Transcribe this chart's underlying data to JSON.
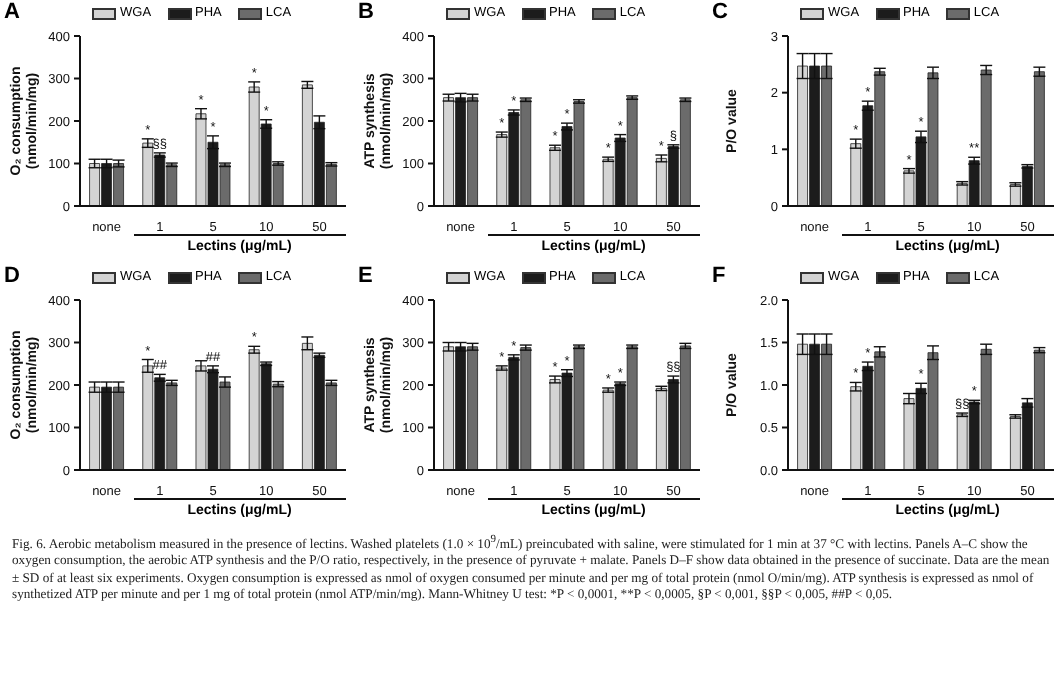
{
  "chart_data": [
    {
      "type": "bar",
      "title": "A",
      "ylabel": "O₂ consumption\n(nmol/min/mg)",
      "xlabel": "Lectins (μg/mL)",
      "categories": [
        "none",
        "1",
        "5",
        "10",
        "50"
      ],
      "ylim": [
        0,
        400
      ],
      "yticks": [
        0,
        100,
        200,
        300,
        400
      ],
      "legend": "top",
      "series": [
        {
          "name": "WGA",
          "color": "#d4d4d4",
          "values": [
            100,
            148,
            217,
            280,
            285
          ],
          "errors": [
            10,
            10,
            12,
            12,
            8
          ],
          "value_labels": [
            null,
            "*",
            "*",
            "*",
            null
          ]
        },
        {
          "name": "PHA",
          "color": "#1c1c1c",
          "values": [
            100,
            120,
            150,
            193,
            197
          ],
          "errors": [
            10,
            5,
            15,
            10,
            15
          ],
          "value_labels": [
            null,
            "§§",
            "*",
            "*",
            null
          ]
        },
        {
          "name": "LCA",
          "color": "#6b6b6b",
          "values": [
            100,
            97,
            97,
            100,
            98
          ],
          "errors": [
            8,
            4,
            4,
            4,
            4
          ],
          "value_labels": [
            null,
            null,
            null,
            null,
            null
          ]
        }
      ]
    },
    {
      "type": "bar",
      "title": "B",
      "ylabel": "ATP synthesis\n(nmol/min/mg)",
      "xlabel": "Lectins (μg/mL)",
      "categories": [
        "none",
        "1",
        "5",
        "10",
        "50"
      ],
      "ylim": [
        0,
        400
      ],
      "yticks": [
        0,
        100,
        200,
        300,
        400
      ],
      "legend": "top",
      "series": [
        {
          "name": "WGA",
          "color": "#d4d4d4",
          "values": [
            255,
            168,
            137,
            110,
            112
          ],
          "errors": [
            8,
            6,
            6,
            5,
            8
          ],
          "value_labels": [
            null,
            "*",
            "*",
            "*",
            "*"
          ]
        },
        {
          "name": "PHA",
          "color": "#1c1c1c",
          "values": [
            255,
            220,
            187,
            160,
            140
          ],
          "errors": [
            10,
            6,
            8,
            8,
            4
          ],
          "value_labels": [
            null,
            "*",
            "*",
            "*",
            "§"
          ]
        },
        {
          "name": "LCA",
          "color": "#6b6b6b",
          "values": [
            255,
            250,
            246,
            255,
            250
          ],
          "errors": [
            8,
            4,
            4,
            4,
            4
          ],
          "value_labels": [
            null,
            null,
            null,
            null,
            null
          ]
        }
      ]
    },
    {
      "type": "bar",
      "title": "C",
      "ylabel": "P/O value",
      "xlabel": "Lectins (μg/mL)",
      "categories": [
        "none",
        "1",
        "5",
        "10",
        "50"
      ],
      "ylim": [
        0,
        3
      ],
      "yticks": [
        0,
        1,
        2,
        3
      ],
      "legend": "top",
      "series": [
        {
          "name": "WGA",
          "color": "#d4d4d4",
          "values": [
            2.47,
            1.1,
            0.62,
            0.4,
            0.38
          ],
          "errors": [
            0.22,
            0.08,
            0.04,
            0.03,
            0.03
          ],
          "value_labels": [
            null,
            "*",
            "*",
            null,
            null
          ]
        },
        {
          "name": "PHA",
          "color": "#1c1c1c",
          "values": [
            2.47,
            1.77,
            1.22,
            0.8,
            0.7
          ],
          "errors": [
            0.22,
            0.08,
            0.1,
            0.06,
            0.03
          ],
          "value_labels": [
            null,
            "*",
            "*",
            "**",
            null
          ]
        },
        {
          "name": "LCA",
          "color": "#6b6b6b",
          "values": [
            2.47,
            2.37,
            2.35,
            2.4,
            2.37
          ],
          "errors": [
            0.22,
            0.06,
            0.1,
            0.08,
            0.08
          ],
          "value_labels": [
            null,
            null,
            null,
            null,
            null
          ]
        }
      ]
    },
    {
      "type": "bar",
      "title": "D",
      "ylabel": "O₂ consumption\n(nmol/min/mg)",
      "xlabel": "Lectins (μg/mL)",
      "categories": [
        "none",
        "1",
        "5",
        "10",
        "50"
      ],
      "ylim": [
        0,
        400
      ],
      "yticks": [
        0,
        100,
        200,
        300,
        400
      ],
      "legend": "top",
      "series": [
        {
          "name": "WGA",
          "color": "#d4d4d4",
          "values": [
            195,
            245,
            245,
            283,
            298
          ],
          "errors": [
            12,
            15,
            12,
            8,
            15
          ],
          "value_labels": [
            null,
            "*",
            null,
            "*",
            null
          ]
        },
        {
          "name": "PHA",
          "color": "#1c1c1c",
          "values": [
            195,
            217,
            237,
            250,
            270
          ],
          "errors": [
            12,
            8,
            8,
            4,
            5
          ],
          "value_labels": [
            null,
            "##",
            "##",
            null,
            null
          ]
        },
        {
          "name": "LCA",
          "color": "#6b6b6b",
          "values": [
            195,
            205,
            207,
            202,
            205
          ],
          "errors": [
            12,
            6,
            12,
            6,
            6
          ],
          "value_labels": [
            null,
            null,
            null,
            null,
            null
          ]
        }
      ]
    },
    {
      "type": "bar",
      "title": "E",
      "ylabel": "ATP synthesis\n(nmol/min/mg)",
      "xlabel": "Lectins (μg/mL)",
      "categories": [
        "none",
        "1",
        "5",
        "10",
        "50"
      ],
      "ylim": [
        0,
        400
      ],
      "yticks": [
        0,
        100,
        200,
        300,
        400
      ],
      "legend": "top",
      "series": [
        {
          "name": "WGA",
          "color": "#d4d4d4",
          "values": [
            290,
            240,
            213,
            188,
            192
          ],
          "errors": [
            10,
            5,
            8,
            5,
            5
          ],
          "value_labels": [
            null,
            "*",
            "*",
            "*",
            null
          ]
        },
        {
          "name": "PHA",
          "color": "#1c1c1c",
          "values": [
            290,
            265,
            228,
            203,
            213
          ],
          "errors": [
            10,
            6,
            8,
            4,
            8
          ],
          "value_labels": [
            null,
            "*",
            "*",
            "*",
            "§§"
          ]
        },
        {
          "name": "LCA",
          "color": "#6b6b6b",
          "values": [
            290,
            288,
            290,
            290,
            292
          ],
          "errors": [
            8,
            6,
            4,
            4,
            6
          ],
          "value_labels": [
            null,
            null,
            null,
            null,
            null
          ]
        }
      ]
    },
    {
      "type": "bar",
      "title": "F",
      "ylabel": "P/O value",
      "xlabel": "Lectins (μg/mL)",
      "categories": [
        "none",
        "1",
        "5",
        "10",
        "50"
      ],
      "ylim": [
        0,
        2
      ],
      "yticks": [
        {
          "value": 0,
          "label": "0.0"
        },
        {
          "value": 0.5,
          "label": "0.5"
        },
        {
          "value": 1,
          "label": "1.0"
        },
        {
          "value": 1.5,
          "label": "1.5"
        },
        {
          "value": 2,
          "label": "2.0"
        }
      ],
      "legend": "top",
      "series": [
        {
          "name": "WGA",
          "color": "#d4d4d4",
          "values": [
            1.48,
            0.98,
            0.84,
            0.65,
            0.63
          ],
          "errors": [
            0.12,
            0.05,
            0.06,
            0.02,
            0.02
          ],
          "value_labels": [
            null,
            "*",
            null,
            "§§",
            null
          ]
        },
        {
          "name": "PHA",
          "color": "#1c1c1c",
          "values": [
            1.48,
            1.22,
            0.96,
            0.8,
            0.79
          ],
          "errors": [
            0.12,
            0.05,
            0.06,
            0.02,
            0.05
          ],
          "value_labels": [
            null,
            "*",
            "*",
            "*",
            null
          ]
        },
        {
          "name": "LCA",
          "color": "#6b6b6b",
          "values": [
            1.48,
            1.39,
            1.38,
            1.42,
            1.41
          ],
          "errors": [
            0.12,
            0.06,
            0.08,
            0.06,
            0.03
          ],
          "value_labels": [
            null,
            null,
            null,
            null,
            null
          ]
        }
      ]
    },
    {
      "type": "other",
      "annotations": [
        "Fig. 6. Aerobic metabolism measured in the presence of lectins. Washed platelets (1.0 × 10$^{9}$/mL) preincubated with saline, were stimulated for 1 min at 37 °C with lectins. Panels A–C show the oxygen consumption, the aerobic ATP synthesis and the P/O ratio, respectively, in the presence of pyruvate + malate. Panels D–F show data obtained in the presence of succinate. Data are the mean ± SD of at least six experiments. Oxygen consumption is expressed as nmol of oxygen consumed per minute and per mg of total protein (nmol O/min/mg). ATP synthesis is expressed as nmol of synthetized ATP per minute and per 1 mg of total protein (nmol ATP/min/mg). Mann-Whitney U test: *P < 0,0001, **P < 0,0005, §P < 0,001, §§P < 0,005, ##P < 0,05."
      ]
    }
  ]
}
